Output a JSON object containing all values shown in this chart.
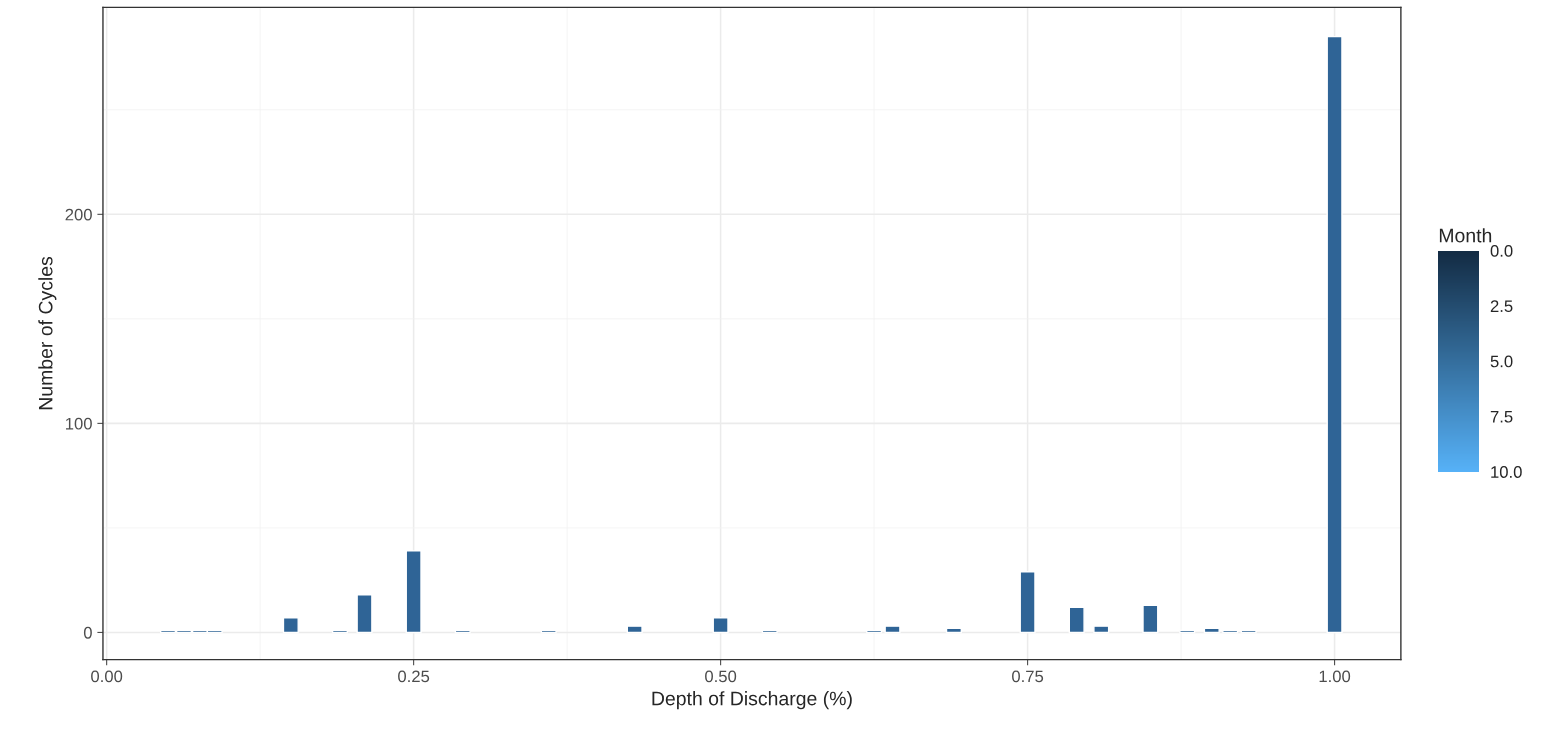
{
  "chart_data": {
    "type": "bar",
    "xlabel": "Depth of Discharge (%)",
    "ylabel": "Number of Cycles",
    "x": [
      0.05,
      0.063,
      0.076,
      0.088,
      0.15,
      0.19,
      0.21,
      0.25,
      0.29,
      0.36,
      0.43,
      0.5,
      0.54,
      0.625,
      0.64,
      0.69,
      0.75,
      0.79,
      0.81,
      0.85,
      0.88,
      0.9,
      0.915,
      0.93,
      1.0
    ],
    "values": [
      1,
      1,
      1,
      1,
      7,
      1,
      18,
      39,
      1,
      1,
      3,
      7,
      1,
      1,
      3,
      2,
      29,
      12,
      3,
      13,
      1,
      2,
      1,
      1,
      285
    ],
    "color": "#2f6496",
    "xlim": [
      -0.003,
      1.054
    ],
    "xticks": [
      {
        "value": 0,
        "label": "0.00"
      },
      0.25,
      {
        "value": 0.5,
        "label": "0.50"
      },
      0.75,
      {
        "value": 1,
        "label": "1.00"
      }
    ],
    "ylim": [
      -13,
      299
    ],
    "yticks": [
      0,
      100,
      200
    ],
    "grid": true,
    "legend_title": "Month",
    "clim": [
      0,
      10
    ],
    "cticks": [
      {
        "value": 0,
        "label": "0.0"
      },
      2.5,
      {
        "value": 5,
        "label": "5.0"
      },
      7.5,
      {
        "value": 10,
        "label": "10.0"
      }
    ]
  }
}
